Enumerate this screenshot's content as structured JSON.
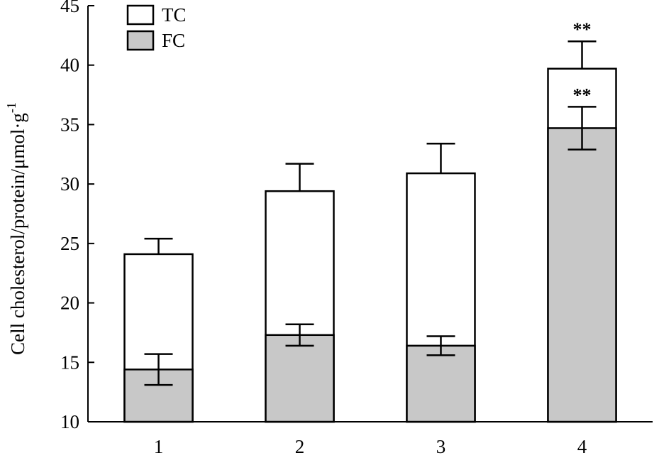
{
  "chart_data": {
    "type": "bar",
    "stacked_overlay": true,
    "categories": [
      "1",
      "2",
      "3",
      "4"
    ],
    "series": [
      {
        "name": "TC",
        "color": "#ffffff",
        "values": [
          24.1,
          29.4,
          30.9,
          39.7
        ],
        "errors": [
          1.3,
          2.3,
          2.5,
          2.3
        ],
        "annotations": [
          "",
          "",
          "",
          "**"
        ]
      },
      {
        "name": "FC",
        "color": "#c8c8c8",
        "values": [
          14.4,
          17.3,
          16.4,
          34.7
        ],
        "errors": [
          1.3,
          0.9,
          0.8,
          1.8
        ],
        "annotations": [
          "",
          "",
          "",
          "**"
        ]
      }
    ],
    "ylabel": "Cell cholesterol/protein/μmol·g",
    "ylabel_superscript": "-1",
    "ylim": [
      10,
      45
    ],
    "yticks": [
      "10",
      "15",
      "20",
      "25",
      "30",
      "35",
      "40",
      "45"
    ],
    "grid": false,
    "legend_position": "top-left"
  }
}
